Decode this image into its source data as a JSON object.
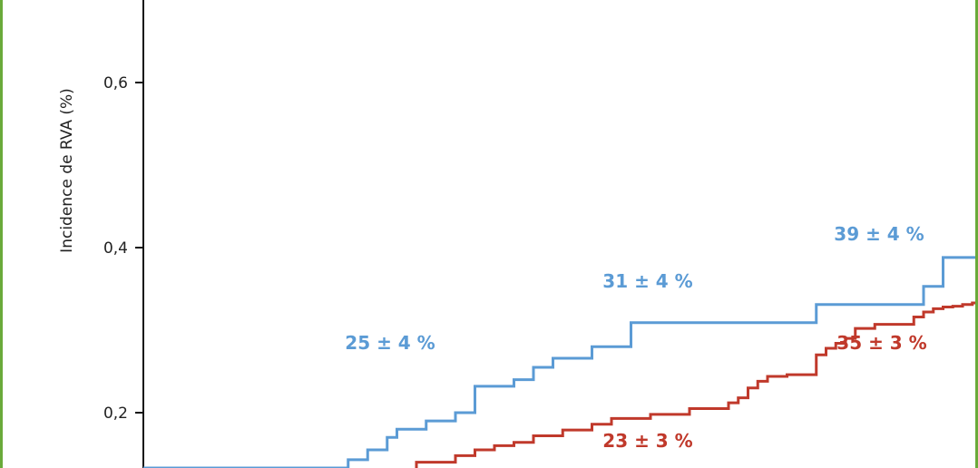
{
  "chart_data": {
    "type": "line",
    "step": true,
    "ylabel": "Incidence de RVA (%)",
    "yticks": [
      "0,2",
      "0,4",
      "0,6"
    ],
    "yrange_visible": [
      0.1,
      0.7
    ],
    "grid": false,
    "series": [
      {
        "color": "#5b9bd5",
        "x": [
          25,
          31,
          33,
          35,
          36,
          39,
          42,
          44,
          48,
          50,
          52,
          56,
          60,
          62,
          68,
          74,
          79,
          90,
          92,
          96
        ],
        "y": [
          0.133,
          0.143,
          0.155,
          0.17,
          0.18,
          0.19,
          0.2,
          0.232,
          0.24,
          0.255,
          0.266,
          0.28,
          0.309,
          0.309,
          0.309,
          0.309,
          0.331,
          0.353,
          0.388,
          0.388
        ]
      },
      {
        "color": "#c0392b",
        "x": [
          38,
          42,
          44,
          46,
          48,
          50,
          53,
          56,
          58,
          62,
          66,
          70,
          71,
          72,
          73,
          74,
          76,
          79,
          80,
          81,
          82,
          83,
          85,
          89,
          90,
          91,
          92,
          93,
          94,
          95,
          96,
          97,
          98
        ],
        "y": [
          0.14,
          0.148,
          0.155,
          0.16,
          0.164,
          0.172,
          0.179,
          0.186,
          0.193,
          0.198,
          0.205,
          0.212,
          0.218,
          0.23,
          0.238,
          0.244,
          0.246,
          0.27,
          0.278,
          0.284,
          0.29,
          0.302,
          0.307,
          0.316,
          0.322,
          0.326,
          0.328,
          0.329,
          0.331,
          0.333,
          0.338,
          0.35,
          0.35
        ]
      }
    ],
    "annotations": [
      {
        "text": "25 ± 4 %",
        "color": "#5b9bd5"
      },
      {
        "text": "31 ± 4 %",
        "color": "#5b9bd5"
      },
      {
        "text": "39 ± 4 %",
        "color": "#5b9bd5"
      },
      {
        "text": "23 ± 3 %",
        "color": "#c0392b"
      },
      {
        "text": "35 ± 3 %",
        "color": "#c0392b"
      }
    ]
  }
}
